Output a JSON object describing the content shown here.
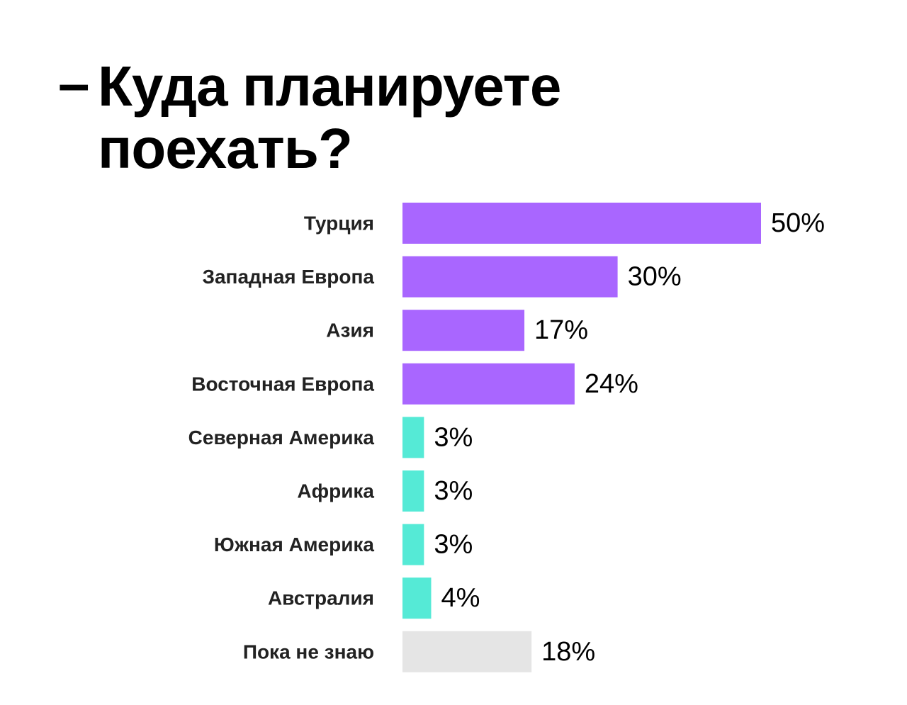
{
  "title": "Куда планируете поехать?",
  "title_prefix": "–",
  "chart_data": {
    "type": "bar",
    "orientation": "horizontal",
    "title": "Куда планируете поехать?",
    "xlim": [
      0,
      50
    ],
    "grid": false,
    "legend": "none",
    "categories": [
      "Турция",
      "Западная Европа",
      "Азия",
      "Восточная Европа",
      "Северная Америка",
      "Африка",
      "Южная Америка",
      "Австралия",
      "Пока не знаю"
    ],
    "values": [
      50,
      30,
      17,
      24,
      3,
      3,
      3,
      4,
      18
    ],
    "value_labels": [
      "50%",
      "30%",
      "17%",
      "24%",
      "3%",
      "3%",
      "3%",
      "4%",
      "18%"
    ],
    "colors": [
      "#a966ff",
      "#a966ff",
      "#a966ff",
      "#a966ff",
      "#55ead6",
      "#55ead6",
      "#55ead6",
      "#55ead6",
      "#e5e5e5"
    ]
  }
}
